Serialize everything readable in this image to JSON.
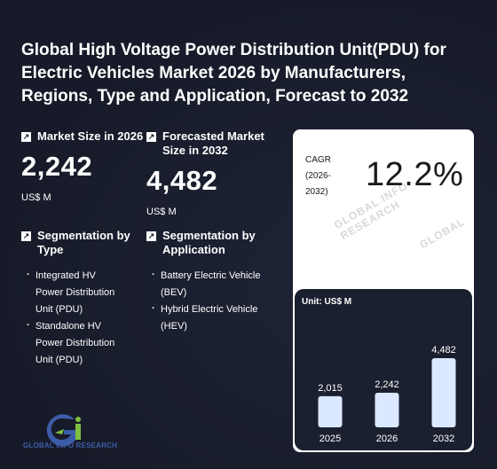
{
  "title": "Global High Voltage Power Distribution Unit(PDU) for Electric Vehicles Market 2026 by Manufacturers, Regions, Type and Application, Forecast to 2032",
  "stats": {
    "market_size": {
      "label": "Market Size in 2026",
      "value": "2,242",
      "unit": "US$ M"
    },
    "forecast_size": {
      "label": "Forecasted Market Size in 2032",
      "value": "4,482",
      "unit": "US$ M"
    }
  },
  "segments": {
    "type": {
      "label": "Segmentation by Type",
      "items": [
        "Integrated HV Power Distribution Unit (PDU)",
        "Standalone HV Power Distribution Unit (PDU)"
      ]
    },
    "application": {
      "label": "Segmentation by Application",
      "items": [
        "Battery Electric Vehicle (BEV)",
        "Hybrid Electric Vehicle (HEV)"
      ]
    }
  },
  "cagr": {
    "label": "CAGR (2026-2032)",
    "value": "12.2%"
  },
  "watermark": "GLOBAL INFO RESEARCH",
  "chart_data": {
    "type": "bar",
    "unit_label": "Unit: US$ M",
    "categories": [
      "2025",
      "2026",
      "2032"
    ],
    "values": [
      2015,
      2242,
      4482
    ],
    "value_labels": [
      "2,015",
      "2,242",
      "4,482"
    ],
    "ylim": [
      0,
      4482
    ],
    "bar_color": "#dbe8ff"
  },
  "logo": {
    "text": "GLOBAL INFO RESEARCH"
  },
  "colors": {
    "background": "#181d2c",
    "card": "#ffffff",
    "chart_panel": "#1b2030",
    "logo_blue": "#3d5ca8",
    "logo_green": "#7fbf3f"
  }
}
